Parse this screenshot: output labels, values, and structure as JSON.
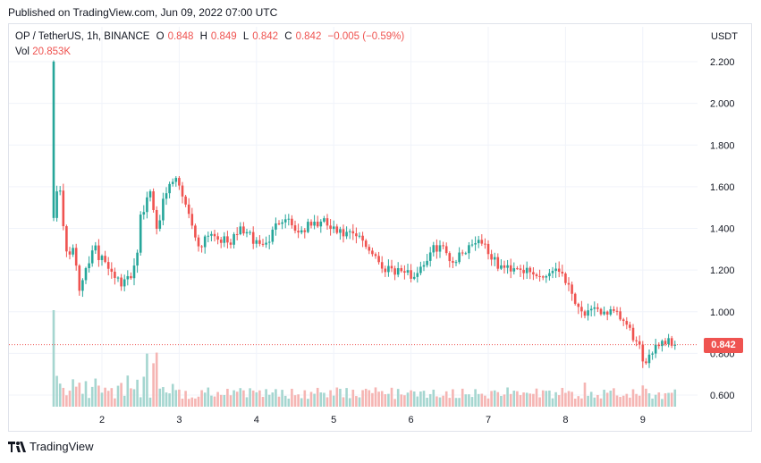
{
  "header": {
    "published": "Published on TradingView.com, Jun 09, 2022 07:00 UTC"
  },
  "legend": {
    "symbol": "OP / TetherUS, 1h, BINANCE",
    "open_label": "O",
    "open": "0.848",
    "high_label": "H",
    "high": "0.849",
    "low_label": "L",
    "low": "0.842",
    "close_label": "C",
    "close": "0.842",
    "change": "−0.005 (−0.59%)",
    "vol_label": "Vol",
    "vol_value": "20.853K"
  },
  "axis": {
    "currency": "USDT",
    "last_price": "0.842"
  },
  "footer": {
    "brand": "TradingView"
  },
  "colors": {
    "up": "#26a69a",
    "down": "#ef5350",
    "vol_up": "#a5d6d0",
    "vol_down": "#f5b5b3",
    "grid": "#f0f3fa"
  },
  "chart_data": {
    "type": "candlestick",
    "title": "OP / TetherUS, 1h, BINANCE",
    "ylabel": "USDT",
    "ylim": [
      0.55,
      2.25
    ],
    "y_ticks": [
      "2.200",
      "2.000",
      "1.800",
      "1.600",
      "1.400",
      "1.200",
      "1.000",
      "0.800",
      "0.600"
    ],
    "x_ticks": [
      "2",
      "3",
      "4",
      "5",
      "6",
      "7",
      "8",
      "9"
    ],
    "x_tick_hours": [
      15,
      39,
      63,
      87,
      111,
      135,
      159,
      183
    ],
    "last_price": 0.842,
    "anchors": [
      [
        0,
        1.45
      ],
      [
        1,
        1.6
      ],
      [
        2,
        1.58
      ],
      [
        3,
        1.4
      ],
      [
        4,
        1.3
      ],
      [
        5,
        1.28
      ],
      [
        6,
        1.32
      ],
      [
        7,
        1.2
      ],
      [
        8,
        1.1
      ],
      [
        9,
        1.15
      ],
      [
        10,
        1.22
      ],
      [
        11,
        1.25
      ],
      [
        12,
        1.28
      ],
      [
        13,
        1.3
      ],
      [
        14,
        1.25
      ],
      [
        15,
        1.28
      ],
      [
        16,
        1.25
      ],
      [
        17,
        1.22
      ],
      [
        18,
        1.2
      ],
      [
        19,
        1.18
      ],
      [
        20,
        1.15
      ],
      [
        21,
        1.12
      ],
      [
        22,
        1.14
      ],
      [
        23,
        1.16
      ],
      [
        24,
        1.18
      ],
      [
        25,
        1.22
      ],
      [
        26,
        1.3
      ],
      [
        27,
        1.45
      ],
      [
        28,
        1.48
      ],
      [
        29,
        1.55
      ],
      [
        30,
        1.58
      ],
      [
        31,
        1.5
      ],
      [
        32,
        1.42
      ],
      [
        33,
        1.46
      ],
      [
        34,
        1.52
      ],
      [
        35,
        1.55
      ],
      [
        36,
        1.6
      ],
      [
        37,
        1.62
      ],
      [
        38,
        1.63
      ],
      [
        39,
        1.6
      ],
      [
        40,
        1.56
      ],
      [
        41,
        1.52
      ],
      [
        42,
        1.48
      ],
      [
        43,
        1.42
      ],
      [
        44,
        1.35
      ],
      [
        45,
        1.32
      ],
      [
        46,
        1.33
      ],
      [
        47,
        1.36
      ],
      [
        48,
        1.38
      ],
      [
        50,
        1.37
      ],
      [
        52,
        1.35
      ],
      [
        54,
        1.33
      ],
      [
        56,
        1.35
      ],
      [
        58,
        1.4
      ],
      [
        60,
        1.38
      ],
      [
        62,
        1.34
      ],
      [
        64,
        1.33
      ],
      [
        66,
        1.32
      ],
      [
        68,
        1.38
      ],
      [
        70,
        1.44
      ],
      [
        72,
        1.46
      ],
      [
        74,
        1.42
      ],
      [
        76,
        1.38
      ],
      [
        78,
        1.4
      ],
      [
        80,
        1.42
      ],
      [
        82,
        1.42
      ],
      [
        84,
        1.43
      ],
      [
        86,
        1.4
      ],
      [
        88,
        1.38
      ],
      [
        90,
        1.37
      ],
      [
        92,
        1.37
      ],
      [
        94,
        1.36
      ],
      [
        96,
        1.34
      ],
      [
        98,
        1.3
      ],
      [
        100,
        1.27
      ],
      [
        102,
        1.2
      ],
      [
        104,
        1.22
      ],
      [
        106,
        1.2
      ],
      [
        108,
        1.2
      ],
      [
        110,
        1.18
      ],
      [
        112,
        1.17
      ],
      [
        114,
        1.22
      ],
      [
        116,
        1.25
      ],
      [
        118,
        1.3
      ],
      [
        120,
        1.32
      ],
      [
        122,
        1.28
      ],
      [
        124,
        1.24
      ],
      [
        126,
        1.27
      ],
      [
        128,
        1.3
      ],
      [
        130,
        1.33
      ],
      [
        132,
        1.35
      ],
      [
        134,
        1.32
      ],
      [
        136,
        1.26
      ],
      [
        138,
        1.22
      ],
      [
        140,
        1.21
      ],
      [
        142,
        1.21
      ],
      [
        144,
        1.22
      ],
      [
        146,
        1.2
      ],
      [
        148,
        1.18
      ],
      [
        150,
        1.17
      ],
      [
        152,
        1.17
      ],
      [
        154,
        1.19
      ],
      [
        156,
        1.21
      ],
      [
        158,
        1.19
      ],
      [
        160,
        1.12
      ],
      [
        162,
        1.06
      ],
      [
        164,
        1.0
      ],
      [
        166,
        0.99
      ],
      [
        168,
        1.0
      ],
      [
        170,
        1.0
      ],
      [
        172,
        1.0
      ],
      [
        174,
        0.99
      ],
      [
        176,
        0.97
      ],
      [
        178,
        0.93
      ],
      [
        180,
        0.88
      ],
      [
        182,
        0.82
      ],
      [
        183,
        0.74
      ],
      [
        185,
        0.8
      ],
      [
        187,
        0.84
      ],
      [
        189,
        0.86
      ],
      [
        191,
        0.86
      ],
      [
        192,
        0.848
      ],
      [
        193,
        0.842
      ]
    ],
    "volume_spikes": [
      [
        0,
        1.0
      ],
      [
        29,
        0.55
      ],
      [
        31,
        0.45
      ],
      [
        32,
        0.56
      ],
      [
        165,
        0.25
      ],
      [
        183,
        0.22
      ]
    ]
  }
}
